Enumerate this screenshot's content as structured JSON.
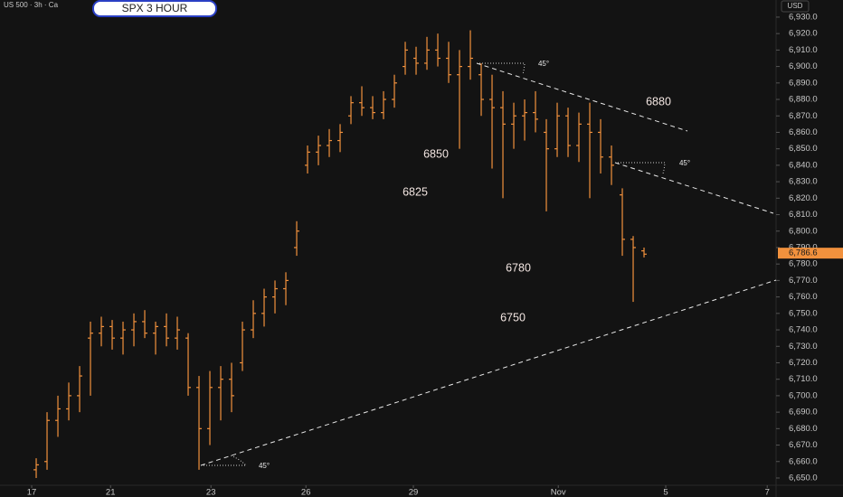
{
  "chart_data": {
    "type": "ohlc",
    "title": "SPX 3 HOUR",
    "symbol_label": "US 500 · 3h · Ca",
    "currency": "USD",
    "color": "#f2913d",
    "last_price": {
      "value": 6786.6,
      "label": "6,786.6"
    },
    "annotations": [
      "6880",
      "6850",
      "6825",
      "6780",
      "6750",
      "45°",
      "45°",
      "45°"
    ],
    "x": [
      0,
      2,
      4,
      6,
      8,
      10,
      12,
      14,
      16,
      18,
      20,
      22,
      24,
      26,
      28,
      30,
      32,
      34,
      36,
      38,
      40,
      42,
      44,
      46,
      48,
      50,
      52,
      54,
      56,
      58,
      60,
      62,
      64,
      66,
      68,
      70,
      72,
      74,
      76,
      78,
      80,
      82,
      84,
      86,
      88,
      90,
      92,
      94,
      96,
      98,
      100,
      102,
      104,
      106,
      108,
      110,
      112
    ],
    "open": [
      6655,
      6660,
      6685,
      6692,
      6700,
      6735,
      6738,
      6742,
      6735,
      6740,
      6745,
      6738,
      6742,
      6735,
      6735,
      6705,
      6680,
      6705,
      6710,
      6720,
      6740,
      6750,
      6760,
      6765,
      6790,
      6840,
      6848,
      6852,
      6855,
      6870,
      6878,
      6875,
      6872,
      6880,
      6900,
      6905,
      6902,
      6910,
      6905,
      6895,
      6900,
      6895,
      6880,
      6875,
      6865,
      6870,
      6872,
      6860,
      6850,
      6870,
      6852,
      6865,
      6860,
      6845,
      6822,
      6795,
      6788
    ],
    "high": [
      6662,
      6690,
      6700,
      6708,
      6718,
      6745,
      6748,
      6746,
      6745,
      6750,
      6752,
      6745,
      6750,
      6748,
      6738,
      6712,
      6715,
      6718,
      6720,
      6745,
      6758,
      6765,
      6770,
      6775,
      6806,
      6852,
      6858,
      6862,
      6865,
      6882,
      6888,
      6882,
      6885,
      6895,
      6915,
      6912,
      6918,
      6920,
      6915,
      6910,
      6922,
      6902,
      6895,
      6885,
      6878,
      6880,
      6885,
      6868,
      6878,
      6875,
      6872,
      6878,
      6868,
      6852,
      6826,
      6797,
      6790
    ],
    "low": [
      6650,
      6655,
      6675,
      6685,
      6690,
      6700,
      6730,
      6728,
      6725,
      6730,
      6735,
      6725,
      6730,
      6728,
      6700,
      6655,
      6670,
      6685,
      6690,
      6715,
      6735,
      6742,
      6750,
      6755,
      6785,
      6835,
      6840,
      6845,
      6848,
      6865,
      6870,
      6868,
      6868,
      6875,
      6895,
      6895,
      6898,
      6900,
      6890,
      6850,
      6892,
      6870,
      6838,
      6820,
      6850,
      6855,
      6860,
      6812,
      6845,
      6845,
      6842,
      6820,
      6835,
      6828,
      6785,
      6757,
      6784
    ],
    "close": [
      6658,
      6685,
      6692,
      6700,
      6712,
      6738,
      6742,
      6735,
      6740,
      6745,
      6738,
      6742,
      6735,
      6740,
      6705,
      6680,
      6705,
      6710,
      6700,
      6740,
      6750,
      6760,
      6765,
      6770,
      6800,
      6848,
      6852,
      6855,
      6860,
      6878,
      6875,
      6872,
      6880,
      6890,
      6910,
      6902,
      6910,
      6905,
      6895,
      6900,
      6905,
      6880,
      6875,
      6865,
      6870,
      6872,
      6868,
      6850,
      6870,
      6852,
      6865,
      6860,
      6845,
      6840,
      6795,
      6790,
      6786
    ],
    "xlim": [
      -6.67,
      136.33
    ],
    "xticks": [
      {
        "value": -0.83,
        "label": "17"
      },
      {
        "value": 13.7,
        "label": "21"
      },
      {
        "value": 32.2,
        "label": "23"
      },
      {
        "value": 49.7,
        "label": "26"
      },
      {
        "value": 69.5,
        "label": "29"
      },
      {
        "value": 96.2,
        "label": "Nov"
      },
      {
        "value": 116,
        "label": "5"
      },
      {
        "value": 134.7,
        "label": "7"
      }
    ],
    "ylim": [
      6645.6,
      6940.4
    ],
    "yticks": [
      {
        "value": 6650,
        "label": "6,650.0"
      },
      {
        "value": 6660,
        "label": "6,660.0"
      },
      {
        "value": 6670,
        "label": "6,670.0"
      },
      {
        "value": 6680,
        "label": "6,680.0"
      },
      {
        "value": 6690,
        "label": "6,690.0"
      },
      {
        "value": 6700,
        "label": "6,700.0"
      },
      {
        "value": 6710,
        "label": "6,710.0"
      },
      {
        "value": 6720,
        "label": "6,720.0"
      },
      {
        "value": 6730,
        "label": "6,730.0"
      },
      {
        "value": 6740,
        "label": "6,740.0"
      },
      {
        "value": 6750,
        "label": "6,750.0"
      },
      {
        "value": 6760,
        "label": "6,760.0"
      },
      {
        "value": 6770,
        "label": "6,770.0"
      },
      {
        "value": 6780,
        "label": "6,780.0"
      },
      {
        "value": 6790,
        "label": "6,790.0"
      },
      {
        "value": 6800,
        "label": "6,800.0"
      },
      {
        "value": 6810,
        "label": "6,810.0"
      },
      {
        "value": 6820,
        "label": "6,820.0"
      },
      {
        "value": 6830,
        "label": "6,830.0"
      },
      {
        "value": 6840,
        "label": "6,840.0"
      },
      {
        "value": 6850,
        "label": "6,850.0"
      },
      {
        "value": 6860,
        "label": "6,860.0"
      },
      {
        "value": 6870,
        "label": "6,870.0"
      },
      {
        "value": 6880,
        "label": "6,880.0"
      },
      {
        "value": 6890,
        "label": "6,890.0"
      },
      {
        "value": 6900,
        "label": "6,900.0"
      },
      {
        "value": 6910,
        "label": "6,910.0"
      },
      {
        "value": 6920,
        "label": "6,920.0"
      },
      {
        "value": 6930,
        "label": "6,930.0"
      }
    ]
  }
}
